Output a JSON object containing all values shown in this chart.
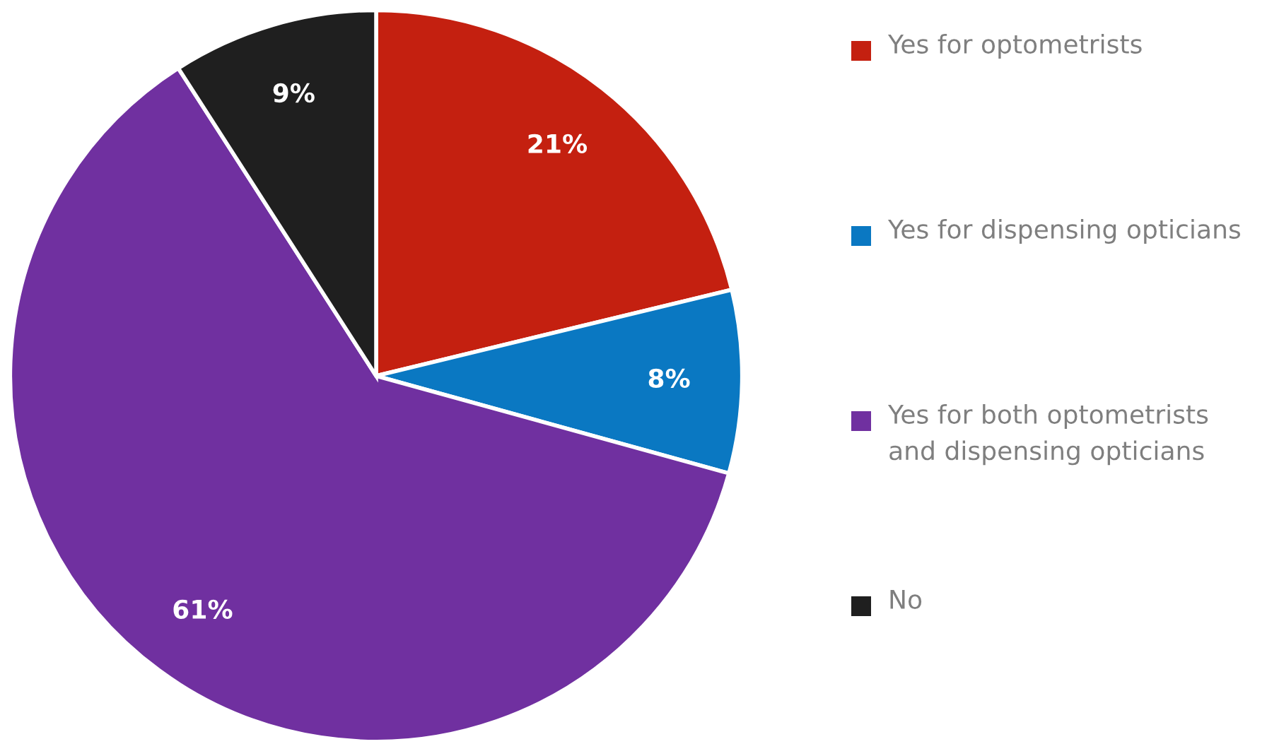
{
  "chart_data": {
    "type": "pie",
    "categories": [
      "Yes for optometrists",
      "Yes for dispensing opticians",
      "Yes for both optometrists and dispensing opticians",
      "No"
    ],
    "values": [
      21,
      8,
      61,
      9
    ],
    "colors": [
      "#c42010",
      "#0a78c2",
      "#7030a0",
      "#1f1f1f"
    ],
    "value_labels": [
      "21%",
      "8%",
      "61%",
      "9%"
    ],
    "legend": "right"
  }
}
